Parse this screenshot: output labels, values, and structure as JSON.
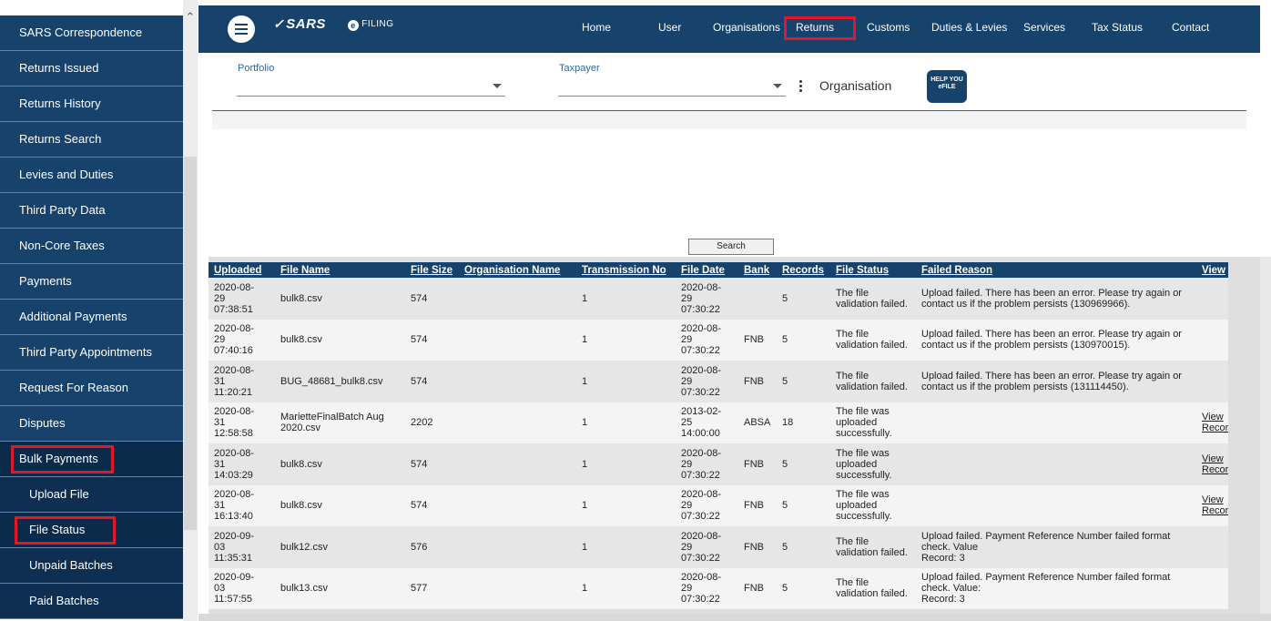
{
  "sidebar": {
    "items": [
      {
        "label": "SARS Correspondence"
      },
      {
        "label": "Returns Issued"
      },
      {
        "label": "Returns History"
      },
      {
        "label": "Returns Search"
      },
      {
        "label": "Levies and Duties"
      },
      {
        "label": "Third Party Data"
      },
      {
        "label": "Non-Core Taxes"
      },
      {
        "label": "Payments"
      },
      {
        "label": "Additional Payments"
      },
      {
        "label": "Third Party Appointments"
      },
      {
        "label": "Request For Reason"
      },
      {
        "label": "Disputes"
      },
      {
        "label": "Bulk Payments"
      },
      {
        "label": "Upload File"
      },
      {
        "label": "File Status"
      },
      {
        "label": "Unpaid Batches"
      },
      {
        "label": "Paid Batches"
      }
    ]
  },
  "header": {
    "logo_text": "SARS",
    "efiling_text": "FILING",
    "nav": [
      {
        "label": "Home"
      },
      {
        "label": "User"
      },
      {
        "label": "Organisations"
      },
      {
        "label": "Returns"
      },
      {
        "label": "Customs"
      },
      {
        "label": "Duties & Levies"
      },
      {
        "label": "Services"
      },
      {
        "label": "Tax Status"
      },
      {
        "label": "Contact"
      }
    ]
  },
  "filters": {
    "portfolio_label": "Portfolio",
    "taxpayer_label": "Taxpayer",
    "organisation_label": "Organisation",
    "help_text": "HELP YOU eFILE"
  },
  "search_button": "Search",
  "table": {
    "headers": [
      "Uploaded",
      "File Name",
      "File Size",
      "Organisation Name",
      "Transmission No",
      "File Date",
      "Bank",
      "Records",
      "File Status",
      "Failed Reason",
      "View"
    ],
    "rows": [
      {
        "uploaded": "2020-08-\n29\n07:38:51",
        "file_name": "bulk8.csv",
        "file_size": "574",
        "org": "",
        "trans": "1",
        "file_date": "2020-08-\n29\n07:30:22",
        "bank": "",
        "records": "5",
        "status": "The file validation failed.",
        "reason": "Upload failed. There has been an error. Please try again or contact us if the problem persists (130969966).",
        "view": ""
      },
      {
        "uploaded": "2020-08-\n29\n07:40:16",
        "file_name": "bulk8.csv",
        "file_size": "574",
        "org": "",
        "trans": "1",
        "file_date": "2020-08-\n29\n07:30:22",
        "bank": "FNB",
        "records": "5",
        "status": "The file validation failed.",
        "reason": "Upload failed. There has been an error. Please try again or contact us if the problem persists (130970015).",
        "view": ""
      },
      {
        "uploaded": "2020-08-\n31\n11:20:21",
        "file_name": "BUG_48681_bulk8.csv",
        "file_size": "574",
        "org": "",
        "trans": "1",
        "file_date": "2020-08-\n29\n07:30:22",
        "bank": "FNB",
        "records": "5",
        "status": "The file validation failed.",
        "reason": "Upload failed. There has been an error. Please try again or contact us if the problem persists (131114450).",
        "view": ""
      },
      {
        "uploaded": "2020-08-\n31\n12:58:58",
        "file_name": "MarietteFinalBatch Aug 2020.csv",
        "file_size": "2202",
        "org": "",
        "trans": "1",
        "file_date": "2013-02-\n25\n14:00:00",
        "bank": "ABSA",
        "records": "18",
        "status": "The file was uploaded successfully.",
        "reason": "",
        "view": "View Records"
      },
      {
        "uploaded": "2020-08-\n31\n14:03:29",
        "file_name": "bulk8.csv",
        "file_size": "574",
        "org": "",
        "trans": "1",
        "file_date": "2020-08-\n29\n07:30:22",
        "bank": "FNB",
        "records": "5",
        "status": "The file was uploaded successfully.",
        "reason": "",
        "view": "View Records"
      },
      {
        "uploaded": "2020-08-\n31\n16:13:40",
        "file_name": "bulk8.csv",
        "file_size": "574",
        "org": "",
        "trans": "1",
        "file_date": "2020-08-\n29\n07:30:22",
        "bank": "FNB",
        "records": "5",
        "status": "The file was uploaded successfully.",
        "reason": "",
        "view": "View Records"
      },
      {
        "uploaded": "2020-09-\n03\n11:35:31",
        "file_name": "bulk12.csv",
        "file_size": "576",
        "org": "",
        "trans": "1",
        "file_date": "2020-08-\n29\n07:30:22",
        "bank": "FNB",
        "records": "5",
        "status": "The file validation failed.",
        "reason": "Upload failed. Payment Reference Number failed format check. Value\nRecord: 3",
        "view": ""
      },
      {
        "uploaded": "2020-09-\n03\n11:57:55",
        "file_name": "bulk13.csv",
        "file_size": "577",
        "org": "",
        "trans": "1",
        "file_date": "2020-08-\n29\n07:30:22",
        "bank": "FNB",
        "records": "5",
        "status": "The file validation failed.",
        "reason": "Upload failed. Payment Reference Number failed format check. Value:\nRecord: 3",
        "view": ""
      }
    ]
  },
  "colors": {
    "brand_blue": "#16426b",
    "highlight_red": "#e4172a"
  }
}
